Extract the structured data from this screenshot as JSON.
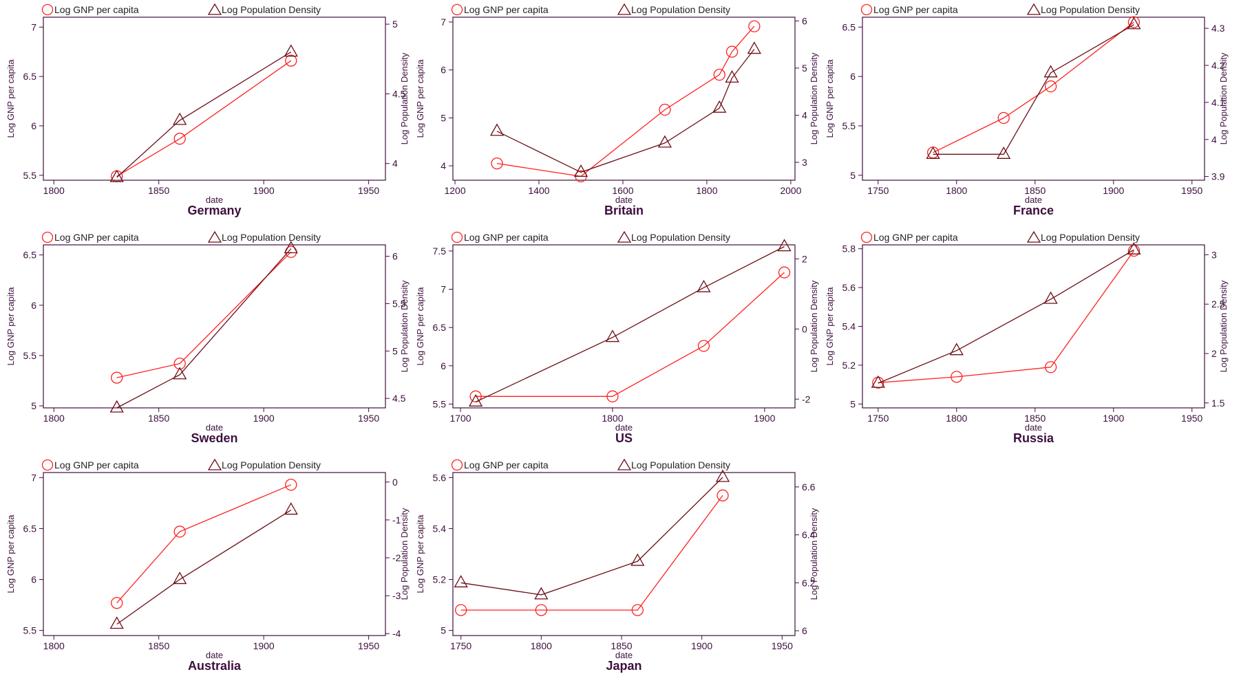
{
  "colors": {
    "gnp": "#ff2020",
    "density": "#6b0f16",
    "axis": "#3d0f3d"
  },
  "chart_data": [
    {
      "type": "line",
      "title": "Germany",
      "xlabel": "date",
      "ylabel_left": "Log GNP per capita",
      "ylabel_right": "Log Population Density",
      "legend": [
        "Log GNP per capita",
        "Log Population Density"
      ],
      "xlim": [
        1795,
        1958
      ],
      "xticks": [
        1800,
        1850,
        1900,
        1950
      ],
      "ylim_left": [
        5.45,
        7.1
      ],
      "yticks_left": [
        5.5,
        6,
        6.5,
        7
      ],
      "ylim_right": [
        3.88,
        5.05
      ],
      "yticks_right": [
        4,
        4.5,
        5
      ],
      "series": [
        {
          "name": "Log GNP per capita",
          "axis": "left",
          "marker": "circle",
          "x": [
            1830,
            1860,
            1913
          ],
          "y": [
            5.49,
            5.87,
            6.66
          ]
        },
        {
          "name": "Log Population Density",
          "axis": "right",
          "marker": "triangle",
          "x": [
            1830,
            1860,
            1913
          ],
          "y": [
            3.9,
            4.31,
            4.8
          ]
        }
      ]
    },
    {
      "type": "line",
      "title": "Britain",
      "xlabel": "date",
      "ylabel_left": "Log GNP per capita",
      "ylabel_right": "Log Population Density",
      "legend": [
        "Log GNP per capita",
        "Log Population Density"
      ],
      "xlim": [
        1195,
        2010
      ],
      "xticks": [
        1200,
        1400,
        1600,
        1800,
        2000
      ],
      "ylim_left": [
        3.7,
        7.1
      ],
      "yticks_left": [
        4,
        5,
        6,
        7
      ],
      "ylim_right": [
        2.62,
        6.08
      ],
      "yticks_right": [
        3,
        4,
        5,
        6
      ],
      "series": [
        {
          "name": "Log GNP per capita",
          "axis": "left",
          "marker": "circle",
          "x": [
            1300,
            1500,
            1700,
            1830,
            1860,
            1913
          ],
          "y": [
            4.05,
            3.78,
            5.17,
            5.9,
            6.38,
            6.91
          ]
        },
        {
          "name": "Log Population Density",
          "axis": "right",
          "marker": "triangle",
          "x": [
            1300,
            1500,
            1700,
            1830,
            1860,
            1913
          ],
          "y": [
            3.66,
            2.79,
            3.41,
            4.15,
            4.79,
            5.4
          ]
        }
      ]
    },
    {
      "type": "line",
      "title": "France",
      "xlabel": "date",
      "ylabel_left": "Log GNP per capita",
      "ylabel_right": "Log Population Density",
      "legend": [
        "Log GNP per capita",
        "Log Population Density"
      ],
      "xlim": [
        1740,
        1958
      ],
      "xticks": [
        1750,
        1800,
        1850,
        1900,
        1950
      ],
      "ylim_left": [
        4.95,
        6.6
      ],
      "yticks_left": [
        5,
        5.5,
        6,
        6.5
      ],
      "ylim_right": [
        3.89,
        4.33
      ],
      "yticks_right": [
        3.9,
        4,
        4.1,
        4.2,
        4.3
      ],
      "series": [
        {
          "name": "Log GNP per capita",
          "axis": "left",
          "marker": "circle",
          "x": [
            1785,
            1830,
            1860,
            1913
          ],
          "y": [
            5.23,
            5.58,
            5.9,
            6.55
          ]
        },
        {
          "name": "Log Population Density",
          "axis": "right",
          "marker": "triangle",
          "x": [
            1785,
            1830,
            1860,
            1913
          ],
          "y": [
            3.96,
            3.96,
            4.18,
            4.31
          ]
        }
      ]
    },
    {
      "type": "line",
      "title": "Sweden",
      "xlabel": "date",
      "ylabel_left": "Log GNP per capita",
      "ylabel_right": "Log Population Density",
      "legend": [
        "Log GNP per capita",
        "Log Population Density"
      ],
      "xlim": [
        1795,
        1958
      ],
      "xticks": [
        1800,
        1850,
        1900,
        1950
      ],
      "ylim_left": [
        4.98,
        6.6
      ],
      "yticks_left": [
        5,
        5.5,
        6,
        6.5
      ],
      "ylim_right": [
        4.4,
        6.12
      ],
      "yticks_right": [
        4.5,
        5,
        5.5,
        6
      ],
      "series": [
        {
          "name": "Log GNP per capita",
          "axis": "left",
          "marker": "circle",
          "x": [
            1830,
            1860,
            1913
          ],
          "y": [
            5.28,
            5.42,
            6.53
          ]
        },
        {
          "name": "Log Population Density",
          "axis": "right",
          "marker": "triangle",
          "x": [
            1830,
            1860,
            1913
          ],
          "y": [
            4.4,
            4.75,
            6.08
          ]
        }
      ]
    },
    {
      "type": "line",
      "title": "US",
      "xlabel": "date",
      "ylabel_left": "Log GNP per capita",
      "ylabel_right": "Log Population Density",
      "legend": [
        "Log GNP per capita",
        "Log Population Density"
      ],
      "xlim": [
        1695,
        1920
      ],
      "xticks": [
        1700,
        1800,
        1900
      ],
      "ylim_left": [
        5.45,
        7.58
      ],
      "yticks_left": [
        5.5,
        6,
        6.5,
        7,
        7.5
      ],
      "ylim_right": [
        -2.25,
        2.4
      ],
      "yticks_right": [
        -2,
        0,
        2
      ],
      "series": [
        {
          "name": "Log GNP per capita",
          "axis": "left",
          "marker": "circle",
          "x": [
            1710,
            1800,
            1860,
            1913
          ],
          "y": [
            5.6,
            5.6,
            6.26,
            7.22
          ]
        },
        {
          "name": "Log Population Density",
          "axis": "right",
          "marker": "triangle",
          "x": [
            1710,
            1800,
            1860,
            1913
          ],
          "y": [
            -2.08,
            -0.24,
            1.18,
            2.35
          ]
        }
      ]
    },
    {
      "type": "line",
      "title": "Russia",
      "xlabel": "date",
      "ylabel_left": "Log GNP per capita",
      "ylabel_right": "Log Population Density",
      "legend": [
        "Log GNP per capita",
        "Log Population Density"
      ],
      "xlim": [
        1740,
        1958
      ],
      "xticks": [
        1750,
        1800,
        1850,
        1900,
        1950
      ],
      "ylim_left": [
        4.98,
        5.82
      ],
      "yticks_left": [
        5,
        5.2,
        5.4,
        5.6,
        5.8
      ],
      "ylim_right": [
        1.45,
        3.1
      ],
      "yticks_right": [
        1.5,
        2,
        2.5,
        3
      ],
      "series": [
        {
          "name": "Log GNP per capita",
          "axis": "left",
          "marker": "circle",
          "x": [
            1750,
            1800,
            1860,
            1913
          ],
          "y": [
            5.11,
            5.14,
            5.19,
            5.79
          ]
        },
        {
          "name": "Log Population Density",
          "axis": "right",
          "marker": "triangle",
          "x": [
            1750,
            1800,
            1860,
            1913
          ],
          "y": [
            1.7,
            2.03,
            2.55,
            3.05
          ]
        }
      ]
    },
    {
      "type": "line",
      "title": "Australia",
      "xlabel": "date",
      "ylabel_left": "Log GNP per capita",
      "ylabel_right": "Log Population Density",
      "legend": [
        "Log GNP per capita",
        "Log Population Density"
      ],
      "xlim": [
        1795,
        1958
      ],
      "xticks": [
        1800,
        1850,
        1900,
        1950
      ],
      "ylim_left": [
        5.45,
        7.05
      ],
      "yticks_left": [
        5.5,
        6,
        6.5,
        7
      ],
      "ylim_right": [
        -4.05,
        0.25
      ],
      "yticks_right": [
        -4,
        -3,
        -2,
        -1,
        0
      ],
      "series": [
        {
          "name": "Log GNP per capita",
          "axis": "left",
          "marker": "circle",
          "x": [
            1830,
            1860,
            1913
          ],
          "y": [
            5.77,
            6.47,
            6.93
          ]
        },
        {
          "name": "Log Population Density",
          "axis": "right",
          "marker": "triangle",
          "x": [
            1830,
            1860,
            1913
          ],
          "y": [
            -3.75,
            -2.57,
            -0.74
          ]
        }
      ]
    },
    {
      "type": "line",
      "title": "Japan",
      "xlabel": "date",
      "ylabel_left": "Log GNP per capita",
      "ylabel_right": "Log Population Density",
      "legend": [
        "Log GNP per capita",
        "Log Population Density"
      ],
      "xlim": [
        1745,
        1958
      ],
      "xticks": [
        1750,
        1800,
        1850,
        1900,
        1950
      ],
      "ylim_left": [
        4.98,
        5.62
      ],
      "yticks_left": [
        5,
        5.2,
        5.4,
        5.6
      ],
      "ylim_right": [
        5.98,
        6.66
      ],
      "yticks_right": [
        6,
        6.2,
        6.4,
        6.6
      ],
      "series": [
        {
          "name": "Log GNP per capita",
          "axis": "left",
          "marker": "circle",
          "x": [
            1750,
            1800,
            1860,
            1913
          ],
          "y": [
            5.08,
            5.08,
            5.08,
            5.53
          ]
        },
        {
          "name": "Log Population Density",
          "axis": "right",
          "marker": "triangle",
          "x": [
            1750,
            1800,
            1860,
            1913
          ],
          "y": [
            6.2,
            6.15,
            6.29,
            6.64
          ]
        }
      ]
    }
  ]
}
